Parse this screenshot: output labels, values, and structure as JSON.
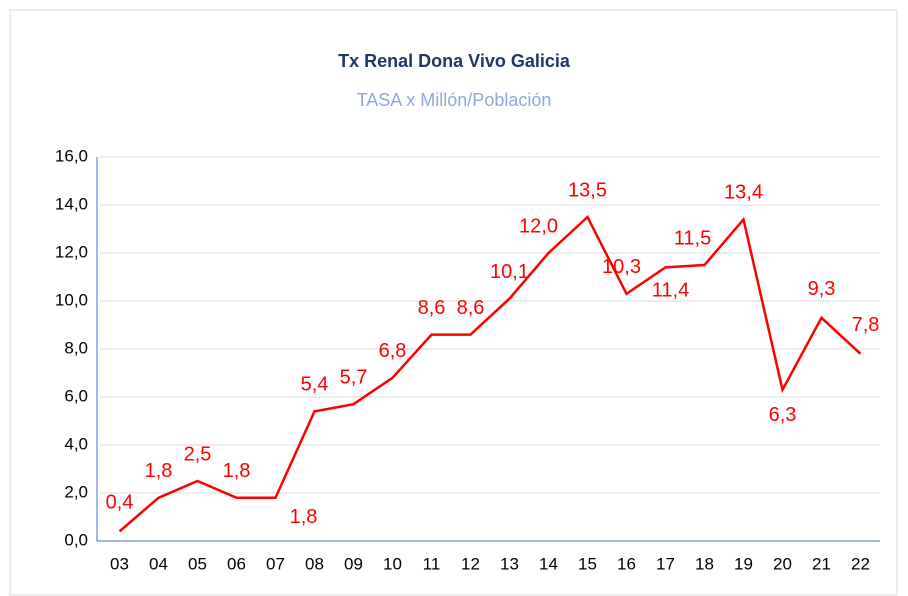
{
  "chart_data": {
    "type": "line",
    "title": "Tx Renal Dona Vivo Galicia",
    "subtitle": "TASA  x Millón/Población",
    "categories": [
      "03",
      "04",
      "05",
      "06",
      "07",
      "08",
      "09",
      "10",
      "11",
      "12",
      "13",
      "14",
      "15",
      "16",
      "17",
      "18",
      "19",
      "20",
      "21",
      "22"
    ],
    "series": [
      {
        "name": "Tx Renal Dona Vivo Galicia",
        "color": "#ff0000",
        "values": [
          0.4,
          1.8,
          2.5,
          1.8,
          1.8,
          5.4,
          5.7,
          6.8,
          8.6,
          8.6,
          10.1,
          12.0,
          13.5,
          10.3,
          11.4,
          11.5,
          13.4,
          6.3,
          9.3,
          7.8
        ],
        "value_labels": [
          "0,4",
          "1,8",
          "2,5",
          "1,8",
          "1,8",
          "5,4",
          "5,7",
          "6,8",
          "8,6",
          "8,6",
          "10,1",
          "12,0",
          "13,5",
          "10,3",
          "11,4",
          "11,5",
          "13,4",
          "6,3",
          "9,3",
          "7,8"
        ]
      }
    ],
    "ylim": [
      0,
      16
    ],
    "yticks": [
      {
        "value": 0,
        "label": "0,0"
      },
      {
        "value": 2,
        "label": "2,0"
      },
      {
        "value": 4,
        "label": "4,0"
      },
      {
        "value": 6,
        "label": "6,0"
      },
      {
        "value": 8,
        "label": "8,0"
      },
      {
        "value": 10,
        "label": "10,0"
      },
      {
        "value": 12,
        "label": "12,0"
      },
      {
        "value": 14,
        "label": "14,0"
      },
      {
        "value": 16,
        "label": "16,0"
      }
    ],
    "grid": true
  }
}
